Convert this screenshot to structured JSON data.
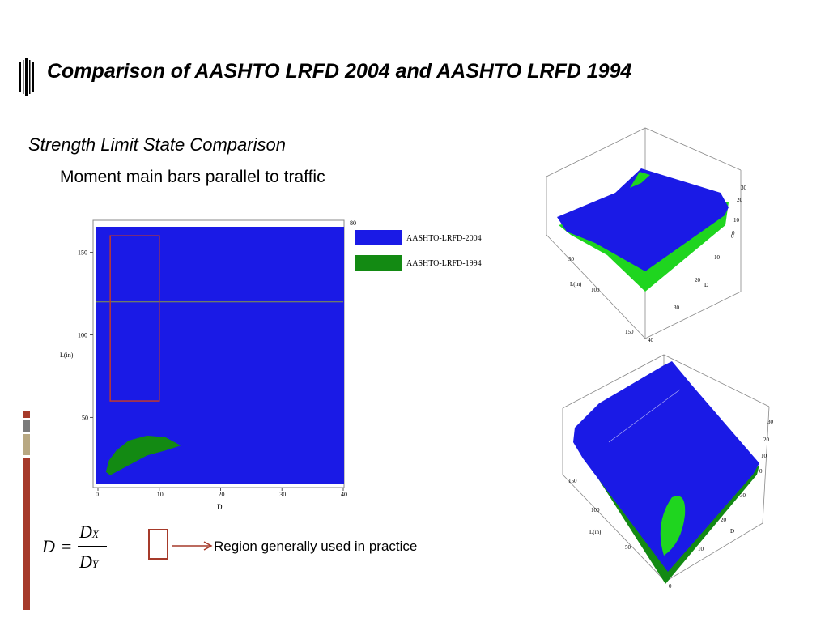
{
  "slide": {
    "title": "Comparison of AASHTO LRFD 2004 and AASHTO LRFD 1994",
    "subtitle": "Strength Limit State Comparison",
    "subsubtitle": "Moment main bars parallel to traffic"
  },
  "colors": {
    "lrfd2004": "#1a1ae6",
    "lrfd1994": "#138a13",
    "region_box": "#a63a2a",
    "sidebar": [
      "#a63a2a",
      "#7a7a7a",
      "#b8a882",
      "#a63a2a"
    ]
  },
  "chart_data": [
    {
      "type": "heatmap",
      "title": "",
      "xlabel": "D",
      "ylabel": "L(in)",
      "xlim": [
        0,
        40
      ],
      "ylim": [
        10,
        165
      ],
      "xticks": [
        "0",
        "10",
        "20",
        "30",
        "40"
      ],
      "yticks": [
        "50",
        "100",
        "150"
      ],
      "corner_tick": "80",
      "legend": [
        {
          "name": "AASHTO-LRFD-2004",
          "color": "#1a1ae6"
        },
        {
          "name": "AASHTO-LRFD-1994",
          "color": "#138a13"
        }
      ],
      "legend_position": "right",
      "region_practice": {
        "x": [
          2,
          10
        ],
        "y": [
          60,
          160
        ]
      },
      "horizontal_line_y": 120,
      "green_region": {
        "name": "AASHTO-LRFD-1994",
        "outline": [
          [
            1.3,
            17
          ],
          [
            1.8,
            24
          ],
          [
            3,
            30
          ],
          [
            5,
            36
          ],
          [
            8,
            39
          ],
          [
            11,
            38
          ],
          [
            13.5,
            33
          ],
          [
            11,
            30
          ],
          [
            8,
            27
          ],
          [
            6,
            23
          ],
          [
            4,
            19
          ],
          [
            2,
            15
          ]
        ]
      }
    },
    {
      "type": "surface3d",
      "axis_labels": {
        "x": "D",
        "y": "L(in)"
      },
      "x_ticks": [
        "0",
        "10",
        "20",
        "30",
        "40"
      ],
      "y_ticks": [
        "50",
        "100",
        "150"
      ],
      "z_ticks": [
        "0",
        "10",
        "20",
        "30"
      ]
    },
    {
      "type": "surface3d",
      "axis_labels": {
        "x": "D",
        "y": "L(in)"
      },
      "x_ticks": [
        "0",
        "10",
        "20",
        "30"
      ],
      "y_ticks": [
        "50",
        "100",
        "150"
      ],
      "z_ticks": [
        "0",
        "10",
        "20",
        "30"
      ]
    }
  ],
  "formula": {
    "lhs": "D",
    "eq": "=",
    "num_main": "D",
    "num_sub": "X",
    "den_main": "D",
    "den_sub": "Y"
  },
  "annotation": {
    "region_label": "Region generally used in practice"
  }
}
